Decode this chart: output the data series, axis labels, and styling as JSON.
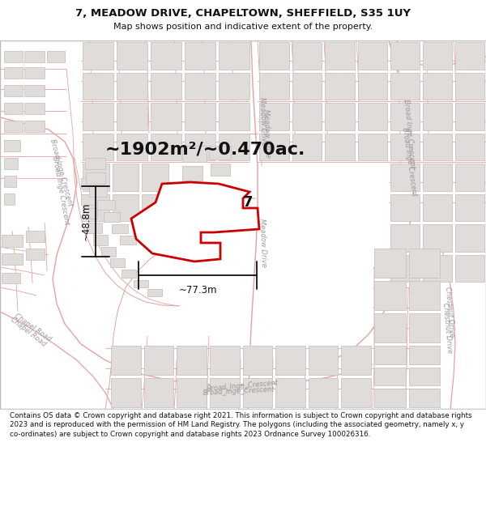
{
  "title_line1": "7, MEADOW DRIVE, CHAPELTOWN, SHEFFIELD, S35 1UY",
  "title_line2": "Map shows position and indicative extent of the property.",
  "area_text": "~1902m²/~0.470ac.",
  "label_number": "7",
  "dim_width": "~77.3m",
  "dim_height": "~48.8m",
  "footer_text": "Contains OS data © Crown copyright and database right 2021. This information is subject to Crown copyright and database rights 2023 and is reproduced with the permission of HM Land Registry. The polygons (including the associated geometry, namely x, y co-ordinates) are subject to Crown copyright and database rights 2023 Ordnance Survey 100026316.",
  "map_bg": "#f7f5f3",
  "road_line_color": "#e8a0a0",
  "road_fill_color": "#f8e8e8",
  "block_fill": "#f0eeed",
  "block_outline": "#d0ccc8",
  "building_fill": "#e0dcda",
  "building_outline": "#c8c4c0",
  "property_edge": "#cc0000",
  "property_fill": "#ffffff",
  "dim_color": "#111111",
  "label_road_color": "#999999",
  "title_fontsize": 9.5,
  "subtitle_fontsize": 8,
  "area_fontsize": 16,
  "number_fontsize": 13,
  "dim_fontsize": 8.5,
  "road_label_fontsize": 6
}
